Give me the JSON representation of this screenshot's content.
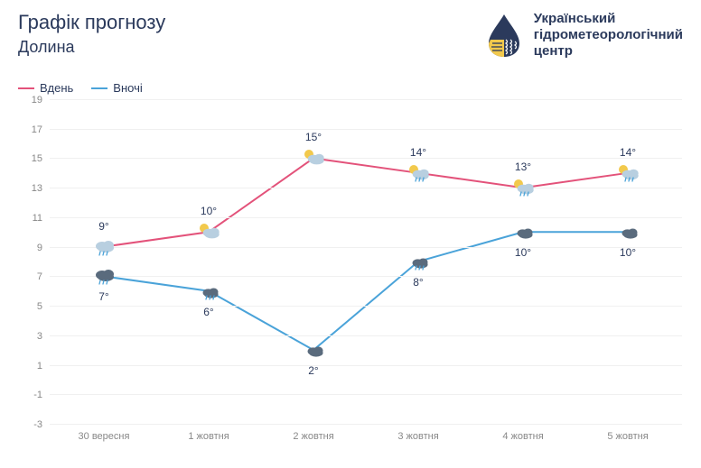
{
  "header": {
    "title": "Графік прогнозу",
    "subtitle": "Долина",
    "org_line1": "Український",
    "org_line2": "гідрометеорологічний",
    "org_line3": "центр"
  },
  "legend": {
    "day": "Вдень",
    "night": "Вночі"
  },
  "chart": {
    "type": "line",
    "y_min": -3,
    "y_max": 19,
    "y_step": 2,
    "y_ticks": [
      -3,
      -1,
      1,
      3,
      5,
      7,
      9,
      11,
      13,
      15,
      17,
      19
    ],
    "x_labels": [
      "30 вересня",
      "1 жовтня",
      "2 жовтня",
      "3 жовтня",
      "4 жовтня",
      "5 жовтня"
    ],
    "colors": {
      "day_line": "#e3527a",
      "night_line": "#4aa3d9",
      "grid": "#f0f0f0",
      "text": "#2b3a5c",
      "tick_text": "#888888",
      "background": "#ffffff"
    },
    "line_width": 2,
    "series": {
      "day": {
        "values": [
          9,
          10,
          15,
          14,
          13,
          14
        ],
        "labels": [
          "9°",
          "10°",
          "15°",
          "14°",
          "13°",
          "14°"
        ],
        "icons": [
          "cloud-rain",
          "sun-cloud",
          "sun-cloud",
          "sun-cloud-rain",
          "sun-cloud-rain",
          "sun-cloud-rain"
        ]
      },
      "night": {
        "values": [
          7,
          6,
          2,
          8,
          10,
          10
        ],
        "labels": [
          "7°",
          "6°",
          "2°",
          "8°",
          "10°",
          "10°"
        ],
        "icons": [
          "cloud-rain-dark",
          "moon-cloud-rain",
          "moon-cloud",
          "moon-cloud-rain",
          "moon-cloud",
          "moon-cloud"
        ]
      }
    }
  }
}
